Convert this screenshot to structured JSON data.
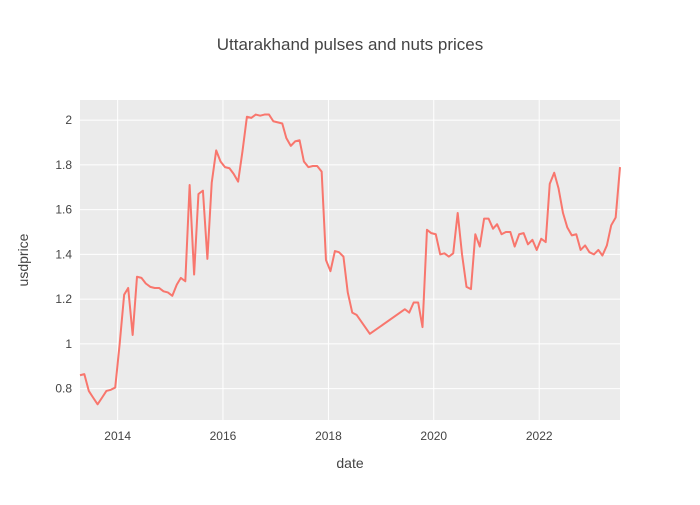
{
  "chart_data": {
    "type": "line",
    "title": "Uttarakhand pulses and nuts prices",
    "xlabel": "date",
    "ylabel": "usdprice",
    "xlim": [
      "2013-04-15",
      "2023-07-15"
    ],
    "ylim": [
      0.66,
      2.09
    ],
    "x_ticks": [
      {
        "date": "2014-01-01",
        "label": "2014"
      },
      {
        "date": "2016-01-01",
        "label": "2016"
      },
      {
        "date": "2018-01-01",
        "label": "2018"
      },
      {
        "date": "2020-01-01",
        "label": "2020"
      },
      {
        "date": "2022-01-01",
        "label": "2022"
      }
    ],
    "y_ticks": [
      {
        "value": 0.8,
        "label": "0.8"
      },
      {
        "value": 1.0,
        "label": "1"
      },
      {
        "value": 1.2,
        "label": "1.2"
      },
      {
        "value": 1.4,
        "label": "1.4"
      },
      {
        "value": 1.6,
        "label": "1.6"
      },
      {
        "value": 1.8,
        "label": "1.8"
      },
      {
        "value": 2.0,
        "label": "2"
      }
    ],
    "grid": true,
    "colors": {
      "line": "#f8766d",
      "plot_bg": "#ebebeb",
      "grid": "#ffffff"
    },
    "series": [
      {
        "x": [
          "2013-04-15",
          "2013-05-15",
          "2013-06-15",
          "2013-07-15",
          "2013-08-15",
          "2013-09-15",
          "2013-10-15",
          "2013-11-15",
          "2013-12-15",
          "2014-01-15",
          "2014-02-15",
          "2014-03-15",
          "2014-04-15",
          "2014-05-15",
          "2014-06-15",
          "2014-07-15",
          "2014-08-15",
          "2014-09-15",
          "2014-10-15",
          "2014-11-15",
          "2014-12-15",
          "2015-01-15",
          "2015-02-15",
          "2015-03-15",
          "2015-04-15",
          "2015-05-15",
          "2015-06-15",
          "2015-07-15",
          "2015-08-15",
          "2015-09-15",
          "2015-10-15",
          "2015-11-15",
          "2015-12-15",
          "2016-01-15",
          "2016-02-15",
          "2016-03-15",
          "2016-04-15",
          "2016-05-15",
          "2016-06-15",
          "2016-07-15",
          "2016-08-15",
          "2016-09-15",
          "2016-10-15",
          "2016-11-15",
          "2016-12-15",
          "2017-01-15",
          "2017-02-15",
          "2017-03-15",
          "2017-04-15",
          "2017-05-15",
          "2017-06-15",
          "2017-07-15",
          "2017-08-15",
          "2017-09-15",
          "2017-10-15",
          "2017-11-15",
          "2017-12-15",
          "2018-01-15",
          "2018-02-15",
          "2018-03-15",
          "2018-04-15",
          "2018-05-15",
          "2018-06-15",
          "2018-07-15",
          "2018-10-15",
          "2019-06-15",
          "2019-07-15",
          "2019-08-15",
          "2019-09-15",
          "2019-10-15",
          "2019-11-15",
          "2019-12-15",
          "2020-01-15",
          "2020-02-15",
          "2020-03-15",
          "2020-04-15",
          "2020-05-15",
          "2020-06-15",
          "2020-07-15",
          "2020-08-15",
          "2020-09-15",
          "2020-10-15",
          "2020-11-15",
          "2020-12-15",
          "2021-01-15",
          "2021-02-15",
          "2021-03-15",
          "2021-04-15",
          "2021-05-15",
          "2021-06-15",
          "2021-07-15",
          "2021-08-15",
          "2021-09-15",
          "2021-10-15",
          "2021-11-15",
          "2021-12-15",
          "2022-01-15",
          "2022-02-15",
          "2022-03-15",
          "2022-04-15",
          "2022-05-15",
          "2022-06-15",
          "2022-07-15",
          "2022-08-15",
          "2022-09-15",
          "2022-10-15",
          "2022-11-15",
          "2022-12-15",
          "2023-01-15",
          "2023-02-15",
          "2023-03-15",
          "2023-04-15",
          "2023-05-15",
          "2023-06-15",
          "2023-07-15"
        ],
        "y": [
          0.86,
          0.865,
          0.79,
          0.76,
          0.73,
          0.76,
          0.79,
          0.795,
          0.805,
          1.0,
          1.22,
          1.25,
          1.04,
          1.3,
          1.295,
          1.27,
          1.255,
          1.25,
          1.25,
          1.235,
          1.23,
          1.215,
          1.265,
          1.295,
          1.28,
          1.71,
          1.31,
          1.67,
          1.685,
          1.38,
          1.72,
          1.865,
          1.815,
          1.79,
          1.785,
          1.76,
          1.725,
          1.86,
          2.015,
          2.01,
          2.025,
          2.02,
          2.025,
          2.025,
          1.995,
          1.99,
          1.985,
          1.92,
          1.885,
          1.905,
          1.91,
          1.815,
          1.79,
          1.795,
          1.795,
          1.77,
          1.375,
          1.325,
          1.415,
          1.41,
          1.39,
          1.23,
          1.14,
          1.13,
          1.045,
          1.155,
          1.14,
          1.185,
          1.185,
          1.075,
          1.51,
          1.495,
          1.49,
          1.4,
          1.405,
          1.39,
          1.405,
          1.585,
          1.4,
          1.255,
          1.245,
          1.49,
          1.435,
          1.56,
          1.56,
          1.515,
          1.535,
          1.49,
          1.5,
          1.5,
          1.435,
          1.49,
          1.495,
          1.445,
          1.465,
          1.42,
          1.47,
          1.455,
          1.715,
          1.765,
          1.695,
          1.585,
          1.52,
          1.485,
          1.49,
          1.42,
          1.44,
          1.41,
          1.4,
          1.42,
          1.395,
          1.44,
          1.53,
          1.565,
          1.79
        ]
      }
    ]
  }
}
